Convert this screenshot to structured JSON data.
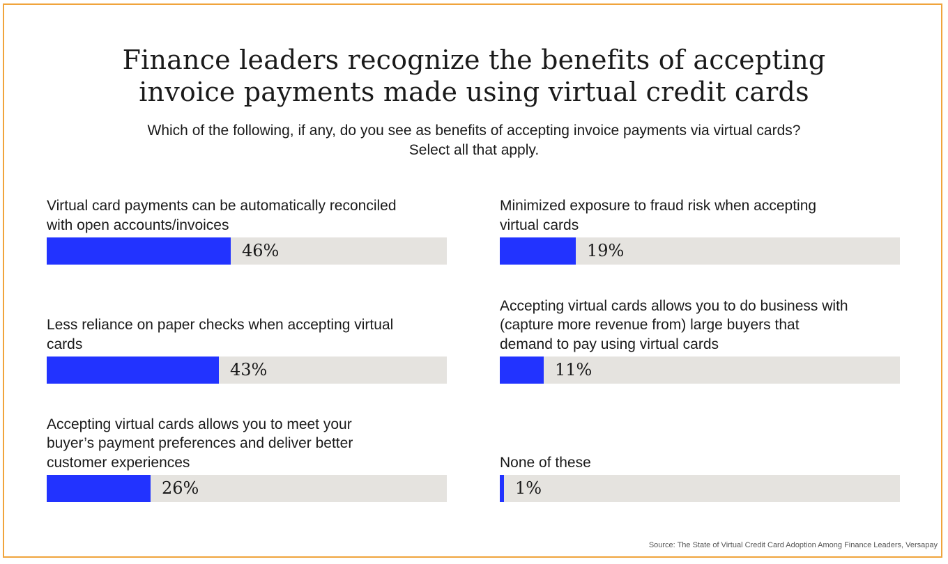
{
  "title": [
    "Finance leaders recognize the benefits of accepting",
    "invoice payments made using virtual credit cards"
  ],
  "subtitle": [
    "Which of the following, if any, do you see as benefits of accepting invoice payments via virtual cards?",
    "Select all that apply."
  ],
  "source": "Source: The State of Virtual Credit Card Adoption Among Finance Leaders, Versapay",
  "colors": {
    "bar": "#2233ff",
    "track": "#e5e3df",
    "border": "#f0a43c"
  },
  "chart_data": {
    "type": "bar",
    "orientation": "horizontal",
    "ylim": [
      0,
      100
    ],
    "categories": [
      [
        "Virtual card payments can be automatically reconciled",
        "with open accounts/invoices"
      ],
      [
        "Less reliance on paper checks when accepting virtual",
        "cards"
      ],
      [
        "Accepting virtual cards allows you to meet your",
        "buyer’s payment preferences and deliver better",
        "customer experiences"
      ],
      [
        "Minimized exposure to fraud risk when accepting",
        "virtual cards"
      ],
      [
        "Accepting virtual cards allows you to do business with",
        "(capture more revenue from) large buyers that",
        "demand to pay using virtual cards"
      ],
      [
        "None of these"
      ]
    ],
    "values": [
      46,
      43,
      26,
      19,
      11,
      1
    ],
    "value_labels": [
      "46%",
      "43%",
      "26%",
      "19%",
      "11%",
      "1%"
    ]
  }
}
